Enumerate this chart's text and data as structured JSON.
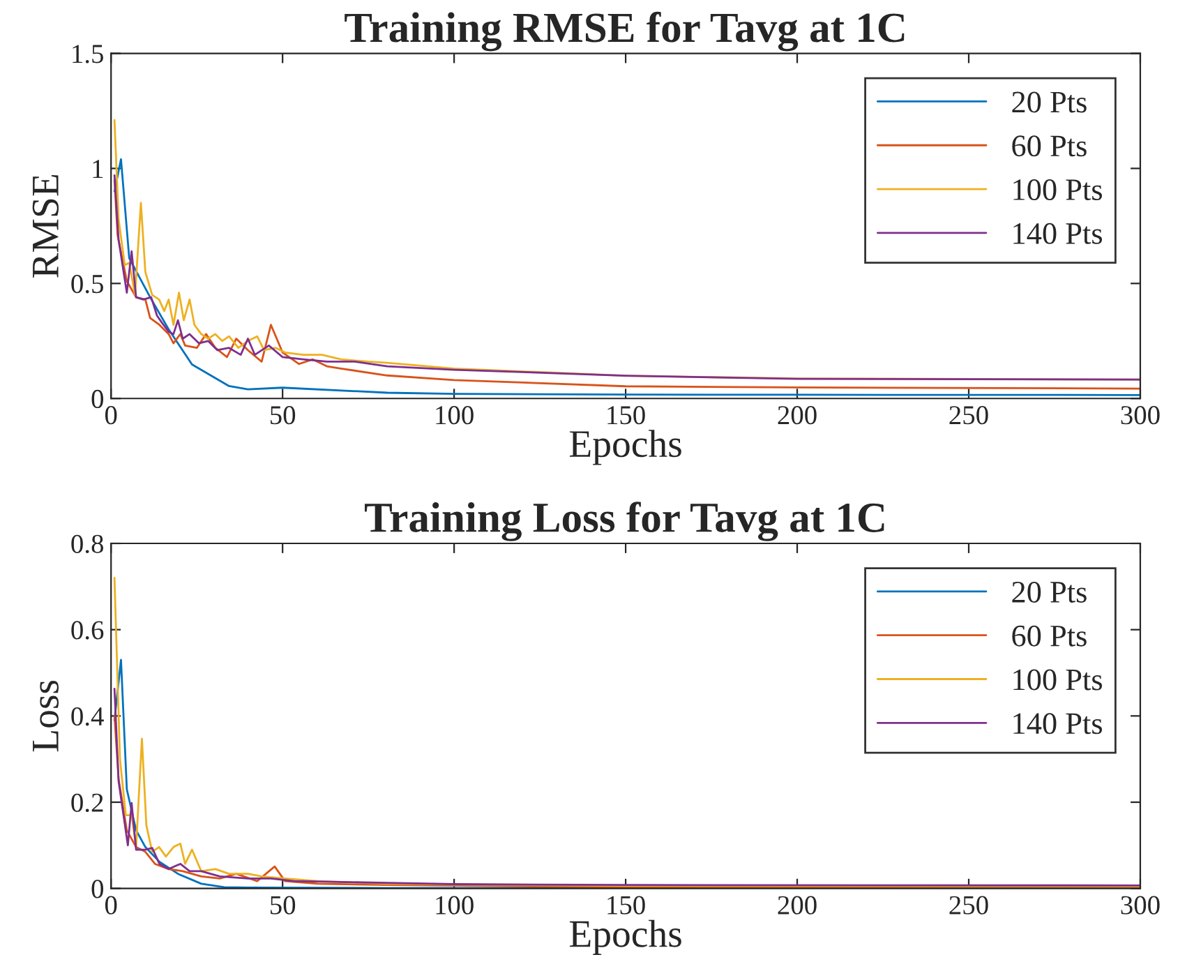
{
  "chart_data": [
    {
      "type": "line",
      "title": "Training RMSE for Tavg at 1C",
      "xlabel": "Epochs",
      "ylabel": "RMSE",
      "xlim": [
        0,
        300
      ],
      "xticks": [
        0,
        50,
        100,
        150,
        200,
        250,
        300
      ],
      "ylim": [
        0,
        1.5
      ],
      "yticks": [
        0,
        0.5,
        1,
        1.5
      ],
      "grid": false,
      "legend": "top right",
      "marker": "none",
      "line_style": "solid",
      "series": [
        {
          "name": "20 Pts",
          "color": "#0072bd",
          "x": [
            1,
            2.9,
            5.3,
            11.4,
            16.8,
            23.6,
            34.4,
            39.9,
            50,
            80.5,
            100,
            150,
            200,
            300
          ],
          "values": [
            0.9,
            1.04,
            0.61,
            0.44,
            0.3,
            0.148,
            0.054,
            0.04,
            0.047,
            0.025,
            0.02,
            0.017,
            0.016,
            0.015
          ]
        },
        {
          "name": "60 Pts",
          "color": "#d95319",
          "x": [
            1,
            1.9,
            4.6,
            7.3,
            10,
            11.4,
            14.1,
            16.8,
            18.2,
            20.2,
            21.6,
            25,
            27.7,
            30.4,
            33.8,
            36.5,
            39.9,
            43.9,
            46.6,
            50,
            54.8,
            58.8,
            62.9,
            67,
            80.5,
            100,
            150,
            200,
            300
          ],
          "values": [
            0.95,
            0.71,
            0.51,
            0.44,
            0.43,
            0.35,
            0.32,
            0.28,
            0.24,
            0.28,
            0.23,
            0.22,
            0.28,
            0.22,
            0.18,
            0.26,
            0.21,
            0.16,
            0.32,
            0.2,
            0.15,
            0.17,
            0.14,
            0.13,
            0.1,
            0.08,
            0.053,
            0.048,
            0.043
          ]
        },
        {
          "name": "100 Pts",
          "color": "#edb120",
          "x": [
            1,
            2.2,
            4,
            5.3,
            7,
            8.7,
            10,
            12,
            14,
            15.5,
            16.8,
            18.2,
            19.8,
            21.2,
            22.9,
            24.3,
            26.3,
            28.3,
            30.4,
            32.4,
            34.4,
            37.1,
            39.9,
            42.6,
            44.6,
            48,
            50.7,
            56,
            61.5,
            67,
            75,
            80.5,
            100,
            150,
            200,
            300
          ],
          "values": [
            1.21,
            0.78,
            0.58,
            0.59,
            0.45,
            0.85,
            0.55,
            0.45,
            0.43,
            0.38,
            0.43,
            0.32,
            0.46,
            0.34,
            0.43,
            0.32,
            0.28,
            0.26,
            0.28,
            0.25,
            0.27,
            0.22,
            0.25,
            0.27,
            0.21,
            0.22,
            0.2,
            0.19,
            0.19,
            0.17,
            0.16,
            0.155,
            0.13,
            0.099,
            0.087,
            0.082
          ]
        },
        {
          "name": "140 Pts",
          "color": "#7e2f8e",
          "x": [
            1,
            2.2,
            4.6,
            6,
            7.3,
            9.4,
            11.7,
            13.4,
            14.8,
            16.8,
            18.2,
            19.5,
            20.9,
            22.9,
            25.6,
            28.3,
            31,
            34.4,
            37.8,
            39.9,
            41.9,
            46,
            50,
            56,
            62.9,
            71,
            80.5,
            100,
            150,
            200,
            300
          ],
          "values": [
            0.97,
            0.69,
            0.46,
            0.64,
            0.44,
            0.43,
            0.44,
            0.36,
            0.33,
            0.29,
            0.28,
            0.34,
            0.26,
            0.28,
            0.24,
            0.25,
            0.21,
            0.22,
            0.19,
            0.26,
            0.19,
            0.23,
            0.18,
            0.17,
            0.16,
            0.16,
            0.14,
            0.125,
            0.099,
            0.085,
            0.082
          ]
        }
      ]
    },
    {
      "type": "line",
      "title": "Training Loss for Tavg at 1C",
      "xlabel": "Epochs",
      "ylabel": "Loss",
      "xlim": [
        0,
        300
      ],
      "xticks": [
        0,
        50,
        100,
        150,
        200,
        250,
        300
      ],
      "ylim": [
        0,
        0.8
      ],
      "yticks": [
        0,
        0.2,
        0.4,
        0.6,
        0.8
      ],
      "grid": false,
      "legend": "top right",
      "marker": "none",
      "line_style": "solid",
      "series": [
        {
          "name": "20 Pts",
          "color": "#0072bd",
          "x": [
            1,
            2.9,
            4.6,
            7.3,
            10,
            14.1,
            19.5,
            26.3,
            33,
            40,
            80,
            300
          ],
          "values": [
            0.39,
            0.53,
            0.23,
            0.135,
            0.096,
            0.062,
            0.034,
            0.011,
            0.003,
            0.002,
            0.001,
            0.001
          ]
        },
        {
          "name": "60 Pts",
          "color": "#d95319",
          "x": [
            1,
            2.2,
            4.6,
            7.3,
            10,
            12.8,
            16.8,
            20.9,
            26.3,
            31.7,
            36.5,
            42.6,
            47.7,
            50.7,
            60.2,
            80.5,
            150,
            300
          ],
          "values": [
            0.4,
            0.254,
            0.135,
            0.096,
            0.085,
            0.057,
            0.045,
            0.04,
            0.028,
            0.023,
            0.034,
            0.017,
            0.051,
            0.017,
            0.011,
            0.008,
            0.003,
            0.002
          ]
        },
        {
          "name": "100 Pts",
          "color": "#edb120",
          "x": [
            1,
            2.6,
            4.3,
            6,
            7.3,
            9,
            10.3,
            12,
            14,
            16,
            18.2,
            20.2,
            21.6,
            23.6,
            26.3,
            30.4,
            34.4,
            39.9,
            43.9,
            50.7,
            60.2,
            80.5,
            100,
            150,
            300
          ],
          "values": [
            0.72,
            0.3,
            0.17,
            0.17,
            0.096,
            0.347,
            0.146,
            0.085,
            0.096,
            0.074,
            0.096,
            0.104,
            0.057,
            0.09,
            0.04,
            0.045,
            0.034,
            0.034,
            0.028,
            0.023,
            0.017,
            0.011,
            0.009,
            0.006,
            0.005
          ]
        },
        {
          "name": "140 Pts",
          "color": "#7e2f8e",
          "x": [
            1,
            2.2,
            4.9,
            6,
            7.3,
            10,
            12,
            14.1,
            16.8,
            20.2,
            22.9,
            26.3,
            31.7,
            39.9,
            46.6,
            53.4,
            67,
            80.5,
            100,
            150,
            300
          ],
          "values": [
            0.463,
            0.249,
            0.1,
            0.198,
            0.09,
            0.09,
            0.094,
            0.057,
            0.045,
            0.057,
            0.04,
            0.04,
            0.028,
            0.023,
            0.023,
            0.017,
            0.015,
            0.013,
            0.01,
            0.008,
            0.007
          ]
        }
      ]
    }
  ]
}
